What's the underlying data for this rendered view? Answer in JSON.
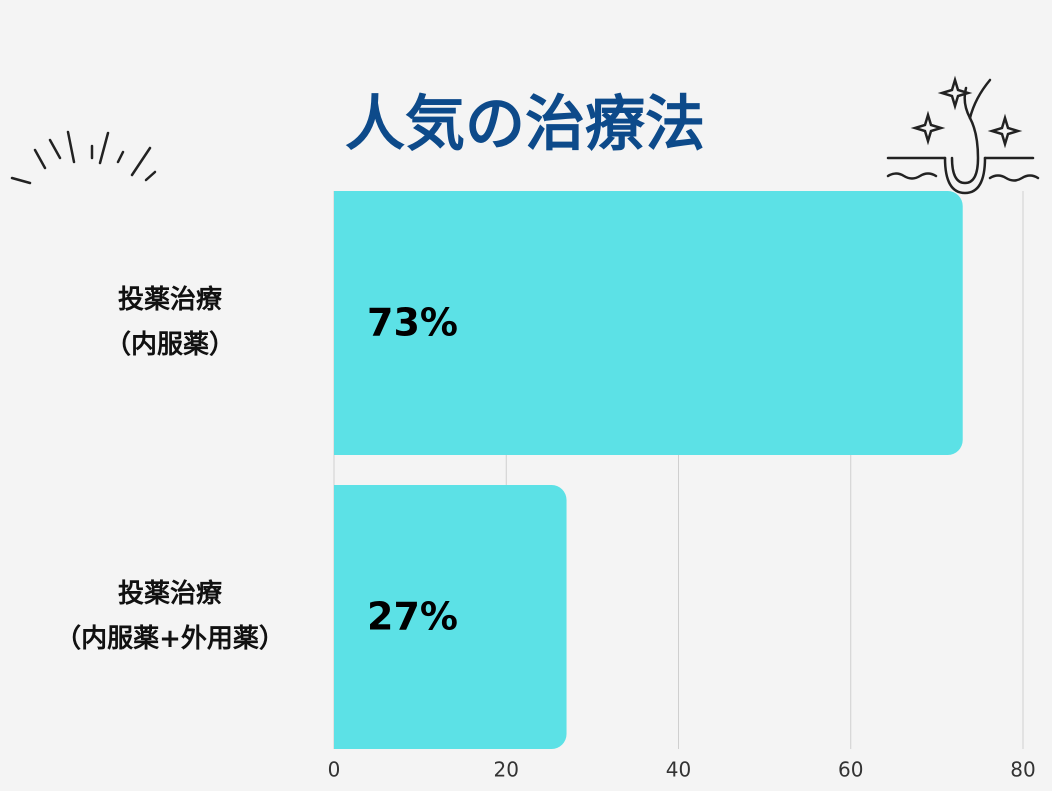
{
  "chart_data": {
    "type": "bar",
    "orientation": "horizontal",
    "title": "人気の治療法",
    "categories": [
      "投薬治療\n（内服薬）",
      "投薬治療\n（内服薬+外用薬）"
    ],
    "values": [
      73,
      27
    ],
    "value_labels": [
      "73%",
      "27%"
    ],
    "color": "#5ce1e6",
    "xlim": [
      0,
      80
    ],
    "xticks": [
      0,
      20,
      40,
      60,
      80
    ],
    "grid": true
  }
}
